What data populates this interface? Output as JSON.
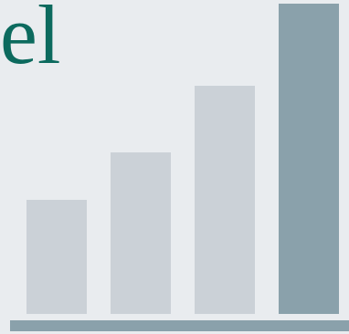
{
  "heading": {
    "text": "el",
    "color": "#0c6a5e"
  },
  "graphic": {
    "icon": "bar-chart-illustration",
    "bar_light_color": "#cbd1d7",
    "bar_accent_color": "#8aa1ab",
    "background_color": "#e9ecef"
  }
}
